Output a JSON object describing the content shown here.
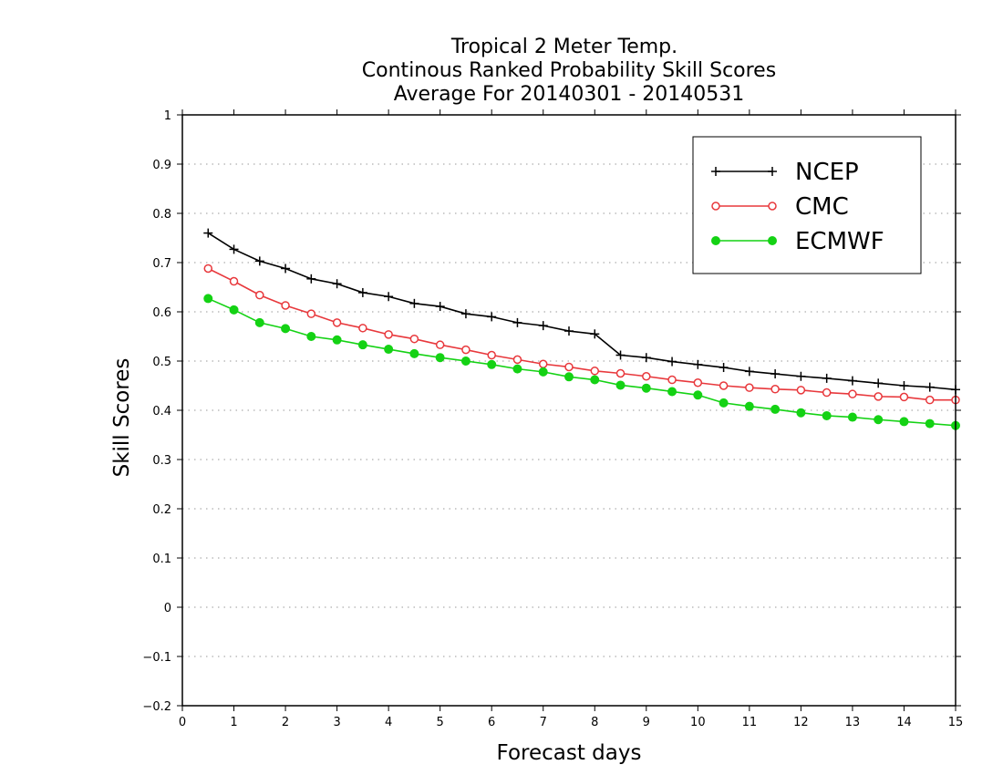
{
  "chart_data": {
    "type": "line",
    "title": [
      "Tropical 2 Meter Temp.",
      "Continous Ranked Probability Skill Scores",
      "Average For 20140301 - 20140531"
    ],
    "xlabel": "Forecast days",
    "ylabel": "Skill Scores",
    "xlim": [
      0,
      15
    ],
    "ylim": [
      -0.2,
      1
    ],
    "xticks": [
      "0",
      "1",
      "2",
      "3",
      "4",
      "5",
      "6",
      "7",
      "8",
      "9",
      "10",
      "11",
      "12",
      "13",
      "14",
      "15"
    ],
    "yticks": [
      "−0.2",
      "−0.1",
      "0",
      "0.1",
      "0.2",
      "0.3",
      "0.4",
      "0.5",
      "0.6",
      "0.7",
      "0.8",
      "0.9",
      "1"
    ],
    "grid": "horizontal dotted",
    "legend_position": "top-right",
    "x": [
      0.5,
      1,
      1.5,
      2,
      2.5,
      3,
      3.5,
      4,
      4.5,
      5,
      5.5,
      6,
      6.5,
      7,
      7.5,
      8,
      8.5,
      9,
      9.5,
      10,
      10.5,
      11,
      11.5,
      12,
      12.5,
      13,
      13.5,
      14,
      14.5,
      15
    ],
    "series": [
      {
        "name": "NCEP",
        "color": "#000000",
        "marker": "plus",
        "values": [
          0.76,
          0.727,
          0.703,
          0.688,
          0.667,
          0.657,
          0.639,
          0.631,
          0.617,
          0.611,
          0.596,
          0.59,
          0.578,
          0.572,
          0.561,
          0.555,
          0.512,
          0.507,
          0.499,
          0.493,
          0.487,
          0.479,
          0.474,
          0.469,
          0.465,
          0.46,
          0.455,
          0.45,
          0.447,
          0.442
        ]
      },
      {
        "name": "CMC",
        "color": "#e8383c",
        "marker": "open-circle",
        "values": [
          0.688,
          0.662,
          0.634,
          0.613,
          0.596,
          0.578,
          0.567,
          0.554,
          0.545,
          0.533,
          0.523,
          0.512,
          0.503,
          0.494,
          0.488,
          0.48,
          0.475,
          0.469,
          0.462,
          0.456,
          0.45,
          0.446,
          0.443,
          0.441,
          0.436,
          0.433,
          0.428,
          0.427,
          0.421,
          0.421
        ]
      },
      {
        "name": "ECMWF",
        "color": "#14d214",
        "marker": "filled-circle",
        "values": [
          0.627,
          0.604,
          0.578,
          0.566,
          0.55,
          0.543,
          0.533,
          0.524,
          0.515,
          0.507,
          0.5,
          0.493,
          0.484,
          0.478,
          0.468,
          0.462,
          0.451,
          0.445,
          0.438,
          0.431,
          0.415,
          0.408,
          0.402,
          0.395,
          0.389,
          0.386,
          0.381,
          0.377,
          0.373,
          0.369
        ]
      }
    ]
  }
}
